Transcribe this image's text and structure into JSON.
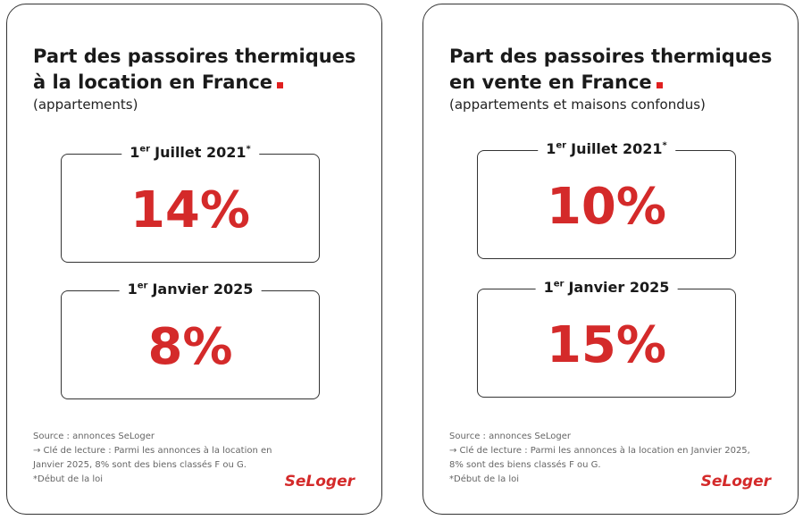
{
  "cards": [
    {
      "title_lines": [
        "Part des passoires thermiques",
        "à la location en France"
      ],
      "subtitle": "(appartements)",
      "periods": [
        {
          "day": "1",
          "suffix": "er",
          "label": "Juillet 2021",
          "mark": "*",
          "value": "14%"
        },
        {
          "day": "1",
          "suffix": "er",
          "label": "Janvier 2025",
          "value": "8%"
        }
      ],
      "source": "Source : annonces SeLoger",
      "reading_key": "→ Clé de lecture : Parmi les annonces à la location en Janvier 2025, 8% sont des biens classés F ou G.",
      "note": "*Début de la loi",
      "logo": "SeLoger"
    },
    {
      "title_lines": [
        "Part des passoires thermiques",
        "en vente en France"
      ],
      "subtitle": "(appartements et maisons confondus)",
      "periods": [
        {
          "day": "1",
          "suffix": "er",
          "label": "Juillet 2021",
          "mark": "*",
          "value": "10%"
        },
        {
          "day": "1",
          "suffix": "er",
          "label": "Janvier 2025",
          "value": "15%"
        }
      ],
      "source": "Source : annonces SeLoger",
      "reading_key": "→ Clé de lecture : Parmi les annonces à la location en Janvier 2025, 8% sont des biens classés F ou G.",
      "note": "*Début de la loi",
      "logo": "SeLoger"
    }
  ]
}
